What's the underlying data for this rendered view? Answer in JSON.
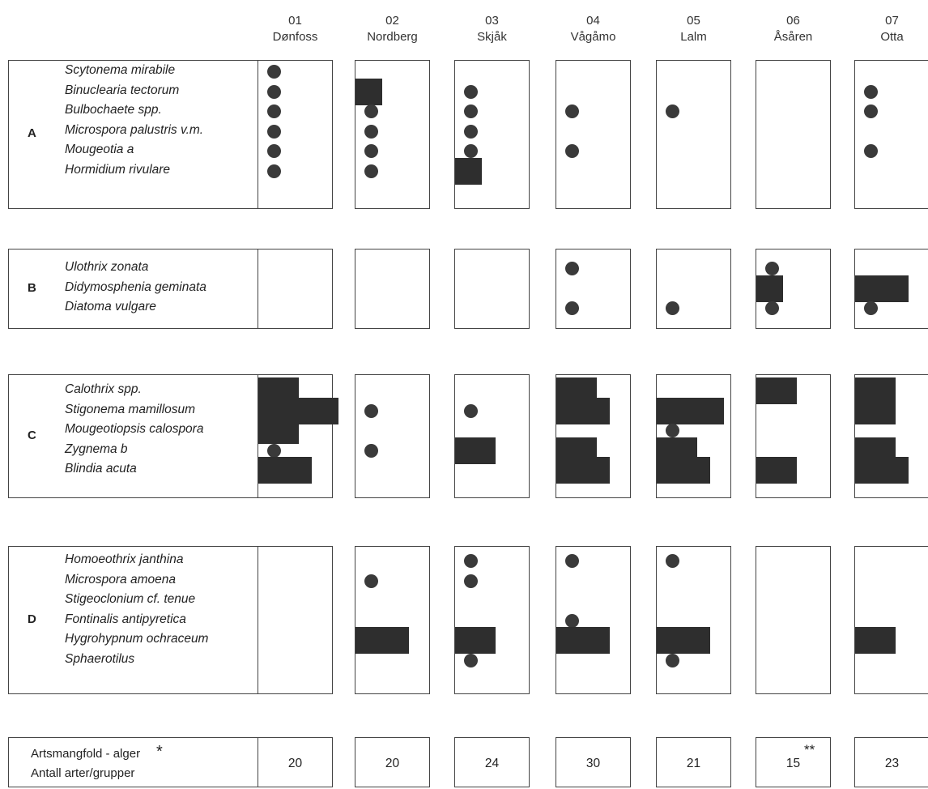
{
  "chart_data": {
    "type": "table",
    "stations": [
      {
        "code": "01",
        "name": "Dønfoss"
      },
      {
        "code": "02",
        "name": "Nordberg"
      },
      {
        "code": "03",
        "name": "Skjåk"
      },
      {
        "code": "04",
        "name": "Vågåmo"
      },
      {
        "code": "05",
        "name": "Lalm"
      },
      {
        "code": "06",
        "name": "Åsåren"
      },
      {
        "code": "07",
        "name": "Otta"
      }
    ],
    "groups": [
      {
        "label": "A",
        "species": [
          "Scytonema mirabile",
          "Binuclearia tectorum",
          "Bulbochaete spp.",
          "Microspora palustris v.m.",
          "Mougeotia a",
          "Hormidium rivulare"
        ],
        "abundance": [
          [
            1,
            0,
            0,
            0,
            0,
            0,
            0
          ],
          [
            1,
            2,
            1,
            0,
            0,
            0,
            1
          ],
          [
            1,
            1,
            1,
            1,
            1,
            0,
            1
          ],
          [
            1,
            1,
            1,
            0,
            0,
            0,
            0
          ],
          [
            1,
            1,
            1,
            1,
            0,
            0,
            1
          ],
          [
            1,
            1,
            2,
            0,
            0,
            0,
            0
          ]
        ]
      },
      {
        "label": "B",
        "species": [
          "Ulothrix zonata",
          "Didymosphenia geminata",
          "Diatoma vulgare"
        ],
        "abundance": [
          [
            0,
            0,
            0,
            1,
            0,
            1,
            0
          ],
          [
            0,
            0,
            0,
            0,
            0,
            2,
            4
          ],
          [
            0,
            0,
            0,
            1,
            1,
            1,
            1
          ]
        ]
      },
      {
        "label": "C",
        "species": [
          "Calothrix spp.",
          "Stigonema mamillosum",
          "Mougeotiopsis calospora",
          "Zygnema b",
          "Blindia acuta"
        ],
        "abundance": [
          [
            3,
            0,
            0,
            3,
            0,
            3,
            3
          ],
          [
            6,
            1,
            1,
            4,
            5,
            0,
            3
          ],
          [
            3,
            0,
            0,
            0,
            1,
            0,
            0
          ],
          [
            1,
            1,
            3,
            3,
            3,
            0,
            3
          ],
          [
            4,
            0,
            0,
            4,
            4,
            3,
            4
          ]
        ]
      },
      {
        "label": "D",
        "species": [
          "Homoeothrix janthina",
          "Microspora amoena",
          "Stigeoclonium cf. tenue",
          "Fontinalis antipyretica",
          "Hygrohypnum ochraceum",
          "Sphaerotilus"
        ],
        "abundance": [
          [
            0,
            0,
            1,
            1,
            1,
            0,
            0
          ],
          [
            0,
            1,
            1,
            0,
            0,
            0,
            0
          ],
          [
            0,
            0,
            0,
            0,
            0,
            0,
            0
          ],
          [
            0,
            0,
            0,
            1,
            0,
            0,
            0
          ],
          [
            0,
            4,
            3,
            4,
            4,
            0,
            3
          ],
          [
            0,
            0,
            1,
            0,
            1,
            0,
            0
          ]
        ]
      }
    ],
    "summary": {
      "label_line1": "Artsmangfold - alger",
      "label_star": "*",
      "label_line2": "Antall arter/grupper",
      "values": [
        "20",
        "20",
        "24",
        "30",
        "21",
        "15",
        "23"
      ],
      "marks": [
        "",
        "",
        "",
        "",
        "",
        "**",
        ""
      ]
    }
  }
}
